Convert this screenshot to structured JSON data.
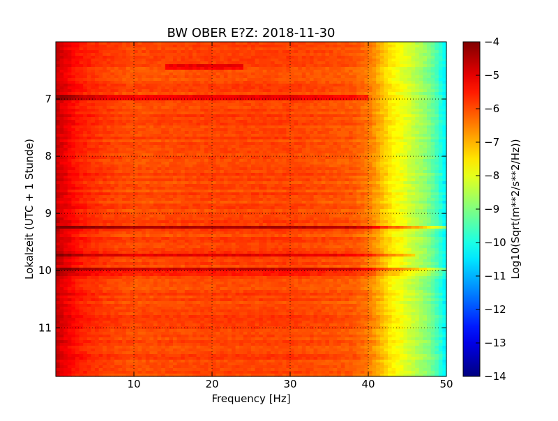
{
  "chart_data": {
    "type": "heatmap",
    "title": "BW OBER E?Z: 2018-11-30",
    "xlabel": "Frequency [Hz]",
    "ylabel": "Lokalzeit (UTC + 1 Stunde)",
    "colorbar_label": "Log10(Sqrt(m**2/s**2/Hz))",
    "xlim": [
      0,
      50
    ],
    "ylim": [
      6.0,
      11.85
    ],
    "y_axis_inverted": true,
    "x_ticks": [
      10,
      20,
      30,
      40,
      50
    ],
    "y_ticks": [
      7,
      8,
      9,
      10,
      11
    ],
    "color_range": [
      -14,
      -4
    ],
    "colorbar_ticks": [
      -4,
      -5,
      -6,
      -7,
      -8,
      -9,
      -10,
      -11,
      -12,
      -13,
      -14
    ],
    "colormap": "jet",
    "grid": true,
    "spectral_profile": {
      "frequency_hz": [
        0,
        1,
        3,
        6,
        10,
        20,
        30,
        38,
        40,
        41,
        42,
        43,
        44,
        45,
        46,
        47,
        48,
        49,
        50
      ],
      "log10_amplitude": [
        -4.7,
        -5.0,
        -5.5,
        -5.8,
        -6.0,
        -5.9,
        -5.9,
        -6.1,
        -6.4,
        -6.8,
        -7.2,
        -7.6,
        -7.8,
        -8.1,
        -8.4,
        -8.7,
        -9.1,
        -9.7,
        -10.4
      ]
    },
    "strong_bands": [
      {
        "time": 6.43,
        "f_from": 14,
        "f_to": 24,
        "delta": 0.8
      },
      {
        "time": 6.98,
        "f_from": 0,
        "f_to": 40,
        "delta": 0.7
      },
      {
        "time": 9.23,
        "f_from": 0,
        "f_to": 50,
        "delta": 1.4
      },
      {
        "time": 9.73,
        "f_from": 0,
        "f_to": 46,
        "delta": 0.9
      },
      {
        "time": 10.0,
        "f_from": 0,
        "f_to": 50,
        "delta": 1.2
      },
      {
        "time": 10.08,
        "f_from": 0,
        "f_to": 50,
        "delta": 1.1
      }
    ],
    "quiet_bands": [
      {
        "time": 10.05,
        "f_from": 0,
        "f_to": 50,
        "delta": -0.6
      }
    ]
  }
}
